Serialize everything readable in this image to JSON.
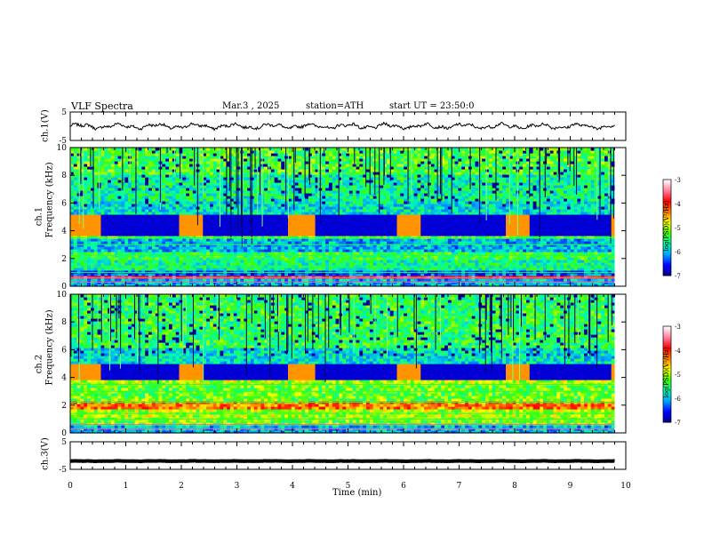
{
  "header": {
    "title": "VLF Spectra",
    "date": "Mar.3 , 2025",
    "station": "station=ATH",
    "start": "start UT = 23:50:0"
  },
  "panels": {
    "ch1": {
      "label": "ch.1(V)"
    },
    "spec1": {
      "ylabel": "Frequency (kHz)",
      "chlabel": "ch.1"
    },
    "spec2": {
      "ylabel": "Frequency (kHz)",
      "chlabel": "ch.2"
    },
    "ch3": {
      "label": "ch.3(V)"
    }
  },
  "colorbar": {
    "label": "log(PSD)(V²/Hz)",
    "ticks": [
      "-3",
      "-4",
      "-5",
      "-6",
      "-7"
    ]
  },
  "colors": {
    "scale": [
      "#000080",
      "#0000ff",
      "#00a0ff",
      "#00ffb0",
      "#40ff00",
      "#ffff00",
      "#ff8000",
      "#ff0000",
      "#ff80a0",
      "#ffffff"
    ]
  },
  "chart_data": [
    {
      "type": "line",
      "title": "",
      "xlabel": "Time (min)",
      "ylabel": "ch.1(V)",
      "xlim": [
        0,
        10
      ],
      "ylim": [
        -5,
        5
      ],
      "yticks": [
        "5",
        "-5"
      ],
      "data_end_min": 9.8,
      "trace_mean": 0,
      "trace_amplitude": 1.2
    },
    {
      "type": "heatmap",
      "xlabel": "",
      "ylabel": "Frequency (kHz)",
      "xlim": [
        0,
        10
      ],
      "ylim": [
        0,
        10
      ],
      "yticks": [
        "0",
        "2",
        "4",
        "6",
        "8",
        "10"
      ],
      "zlim": [
        -7,
        -3
      ],
      "bands": [
        {
          "from": 0,
          "to": 0.4,
          "z": -6.0
        },
        {
          "from": 0.4,
          "to": 0.7,
          "z": -3.8
        },
        {
          "from": 0.7,
          "to": 1.0,
          "z": -6.3
        },
        {
          "from": 1.0,
          "to": 1.8,
          "z": -5.6
        },
        {
          "from": 1.8,
          "to": 2.4,
          "z": -5.4
        },
        {
          "from": 2.4,
          "to": 3.3,
          "z": -6.0
        },
        {
          "from": 3.3,
          "to": 3.6,
          "z": -5.2
        },
        {
          "from": 3.6,
          "to": 4.9,
          "z": -6.4
        },
        {
          "from": 4.9,
          "to": 6.0,
          "z": -5.8
        },
        {
          "from": 6.0,
          "to": 8.0,
          "z": -5.6
        },
        {
          "from": 8.0,
          "to": 10.0,
          "z": -5.3
        }
      ],
      "plateaus_min": [
        [
          0,
          0.5
        ],
        [
          1.9,
          2.35
        ],
        [
          3.9,
          4.35
        ],
        [
          5.85,
          6.3
        ],
        [
          7.8,
          8.25
        ],
        [
          9.7,
          9.8
        ]
      ],
      "gap_band_khz": [
        3.6,
        5.0
      ]
    },
    {
      "type": "heatmap",
      "xlabel": "",
      "ylabel": "Frequency (kHz)",
      "xlim": [
        0,
        10
      ],
      "ylim": [
        0,
        10
      ],
      "yticks": [
        "0",
        "2",
        "4",
        "6",
        "8",
        "10"
      ],
      "zlim": [
        -7,
        -3
      ],
      "bands": [
        {
          "from": 0,
          "to": 0.4,
          "z": -6.0
        },
        {
          "from": 0.4,
          "to": 0.9,
          "z": -5.2
        },
        {
          "from": 0.9,
          "to": 1.7,
          "z": -5.0
        },
        {
          "from": 1.7,
          "to": 2.3,
          "z": -4.3
        },
        {
          "from": 2.3,
          "to": 3.3,
          "z": -5.2
        },
        {
          "from": 3.3,
          "to": 3.7,
          "z": -5.0
        },
        {
          "from": 3.7,
          "to": 4.0,
          "z": -4.6
        },
        {
          "from": 4.0,
          "to": 5.0,
          "z": -5.6
        },
        {
          "from": 5.0,
          "to": 6.0,
          "z": -5.8
        },
        {
          "from": 6.0,
          "to": 10.0,
          "z": -5.4
        }
      ],
      "plateaus_min": [
        [
          0,
          0.5
        ],
        [
          1.9,
          2.35
        ],
        [
          3.9,
          4.35
        ],
        [
          5.85,
          6.3
        ],
        [
          7.8,
          8.25
        ],
        [
          9.7,
          9.8
        ]
      ],
      "gap_band_khz": [
        3.8,
        4.8
      ]
    },
    {
      "type": "line",
      "xlabel": "Time (min)",
      "ylabel": "ch.3(V)",
      "xlim": [
        0,
        10
      ],
      "ylim": [
        -5,
        5
      ],
      "yticks": [
        "5",
        "-5"
      ],
      "xticks": [
        "0",
        "1",
        "2",
        "3",
        "4",
        "5",
        "6",
        "7",
        "8",
        "9",
        "10"
      ],
      "data_end_min": 9.8,
      "trace_mean": -2,
      "trace_amplitude": 0.1
    }
  ]
}
